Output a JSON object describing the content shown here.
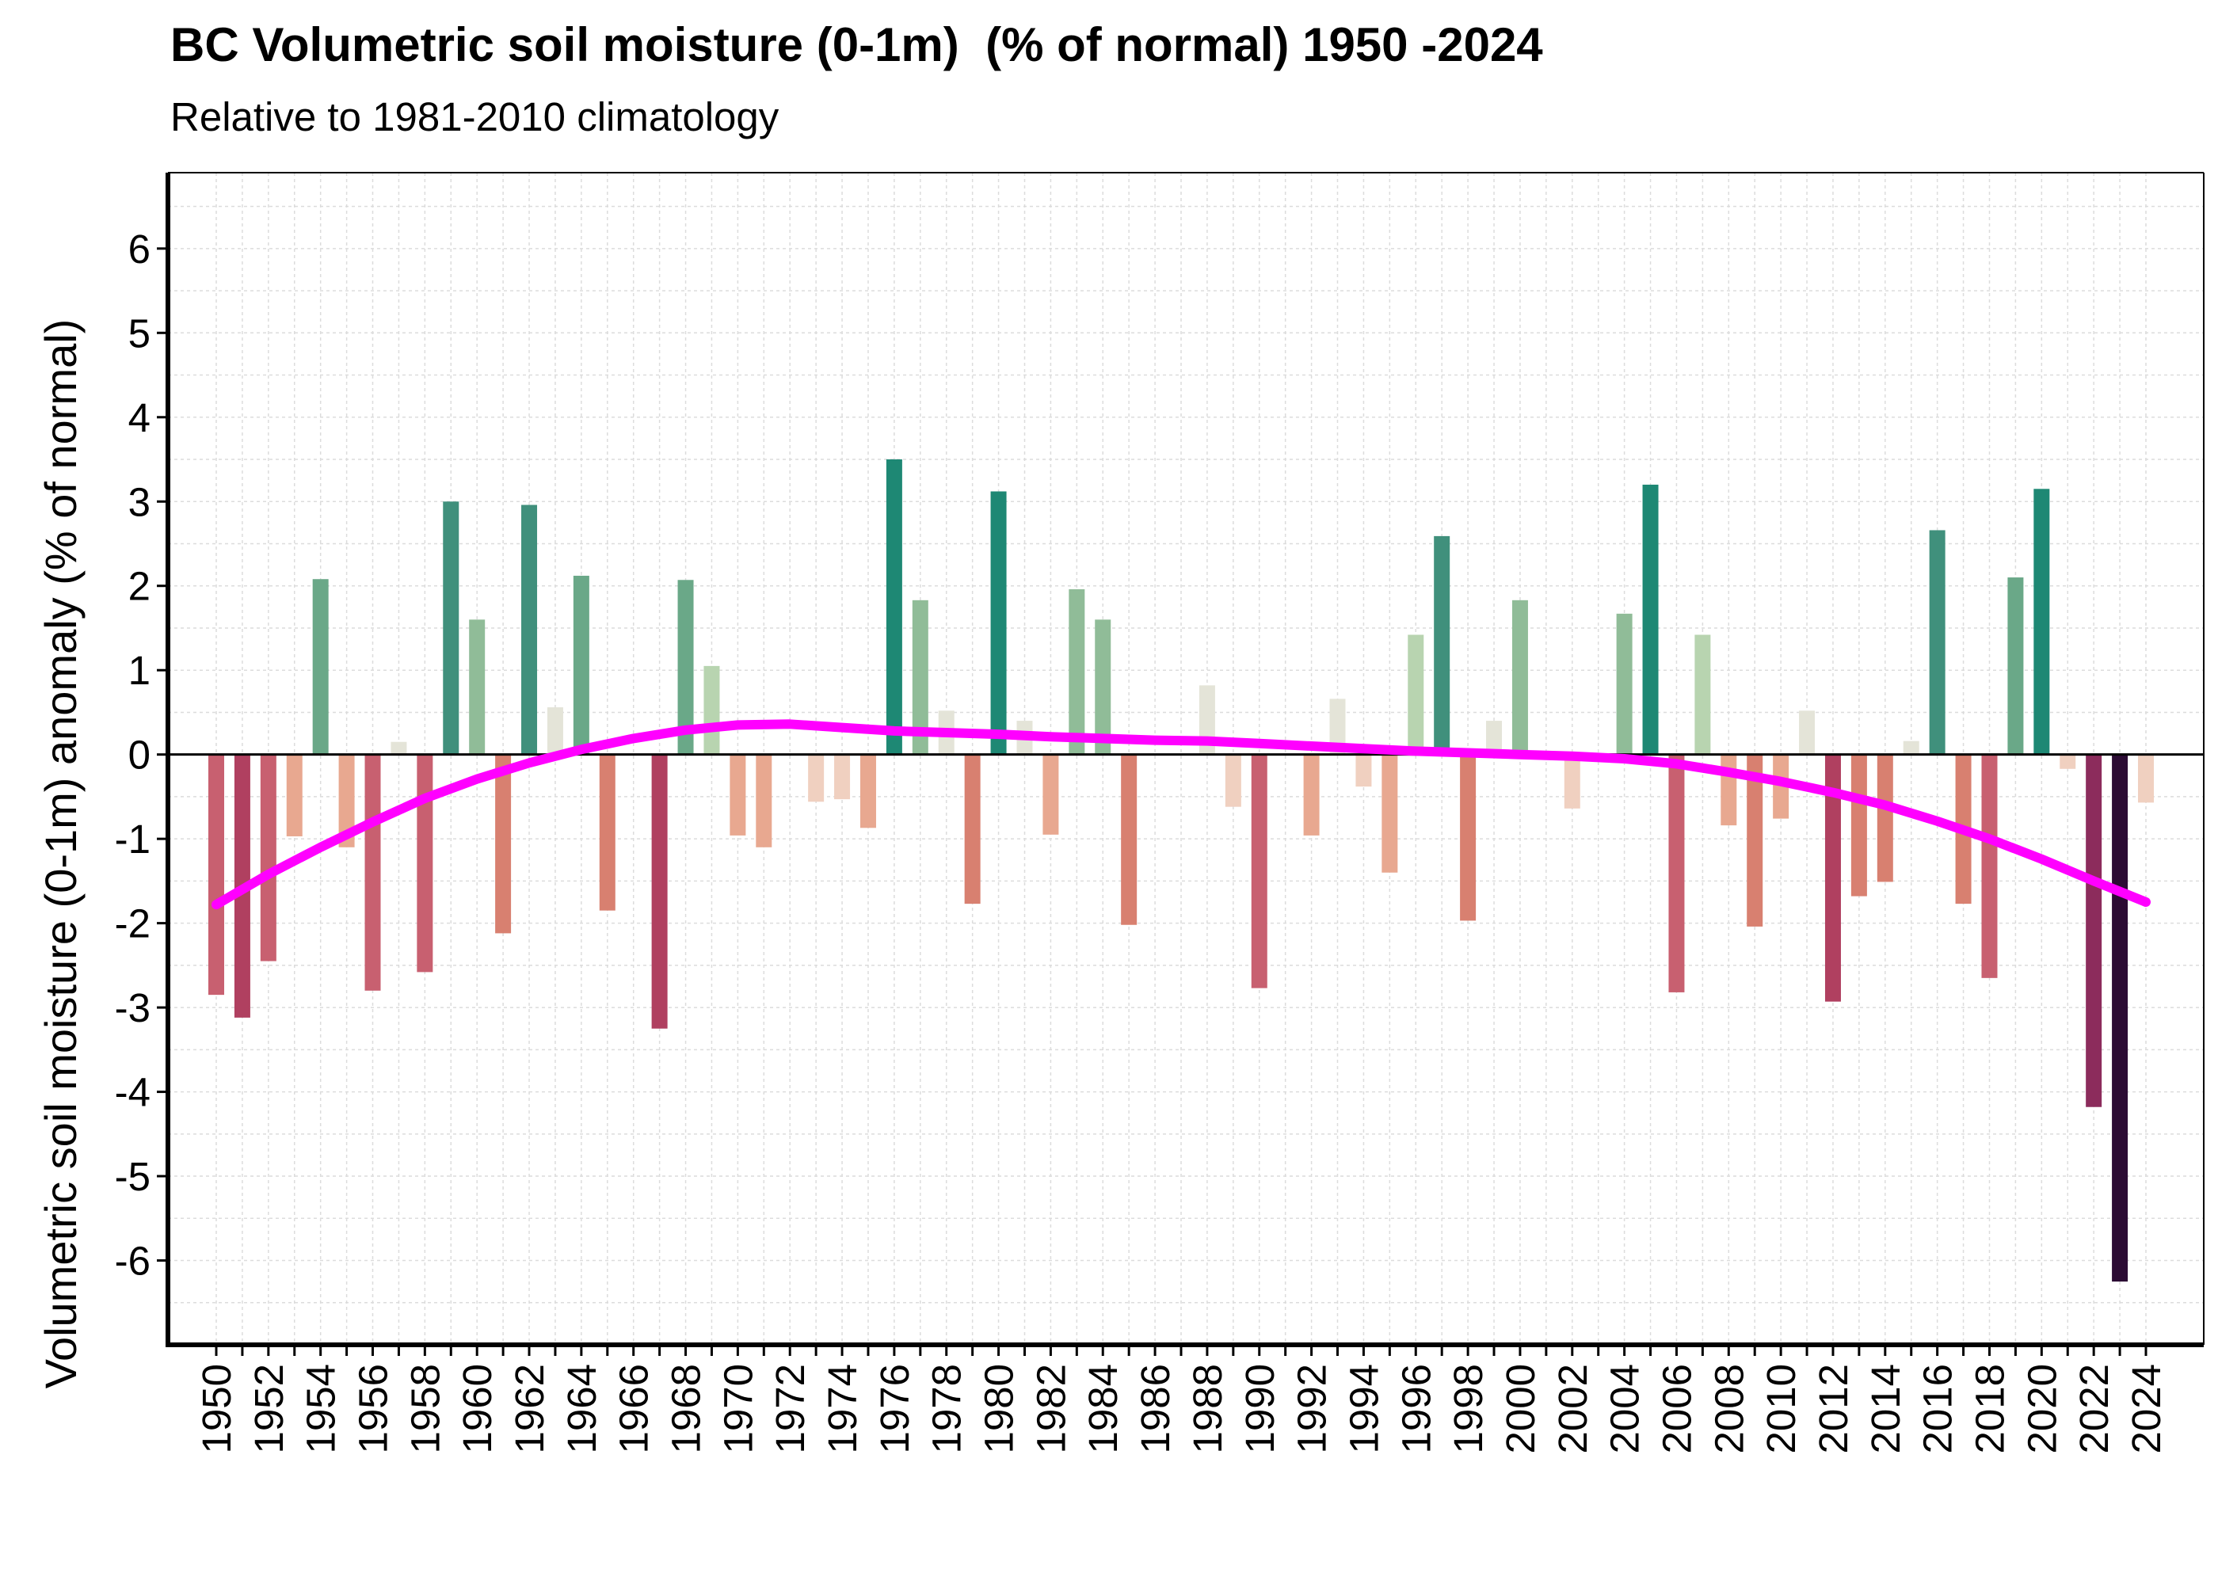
{
  "chart_data": {
    "type": "bar",
    "title": "BC Volumetric soil moisture (0-1m)  (% of normal) 1950 -2024",
    "subtitle": "Relative to 1981-2010 climatology",
    "ylabel": "Volumetric soil moisture (0-1m) anomaly (% of normal)",
    "xlabel": "",
    "ylim": [
      -7.0,
      6.9
    ],
    "y_ticks": [
      -6,
      -5,
      -4,
      -3,
      -2,
      -1,
      0,
      1,
      2,
      3,
      4,
      5,
      6
    ],
    "x_tick_labels": [
      "1950",
      "1952",
      "1954",
      "1956",
      "1958",
      "1960",
      "1962",
      "1964",
      "1966",
      "1968",
      "1970",
      "1972",
      "1974",
      "1976",
      "1978",
      "1980",
      "1982",
      "1984",
      "1986",
      "1988",
      "1990",
      "1992",
      "1994",
      "1996",
      "1998",
      "2000",
      "2002",
      "2004",
      "2006",
      "2008",
      "2010",
      "2012",
      "2014",
      "2016",
      "2018",
      "2020",
      "2022",
      "2024"
    ],
    "grid": true,
    "x": [
      1950,
      1951,
      1952,
      1953,
      1954,
      1955,
      1956,
      1957,
      1958,
      1959,
      1960,
      1961,
      1962,
      1963,
      1964,
      1965,
      1966,
      1967,
      1968,
      1969,
      1970,
      1971,
      1972,
      1973,
      1974,
      1975,
      1976,
      1977,
      1978,
      1979,
      1980,
      1981,
      1982,
      1983,
      1984,
      1985,
      1986,
      1987,
      1988,
      1989,
      1990,
      1991,
      1992,
      1993,
      1994,
      1995,
      1996,
      1997,
      1998,
      1999,
      2000,
      2001,
      2002,
      2003,
      2004,
      2005,
      2006,
      2007,
      2008,
      2009,
      2010,
      2011,
      2012,
      2013,
      2014,
      2015,
      2016,
      2017,
      2018,
      2019,
      2020,
      2021,
      2022,
      2023,
      2024
    ],
    "values": [
      -2.85,
      -3.12,
      -2.45,
      -0.97,
      2.08,
      -1.1,
      -2.8,
      0.15,
      -2.58,
      3.0,
      1.6,
      -2.12,
      2.96,
      0.56,
      2.12,
      -1.85,
      0.0,
      -3.25,
      2.07,
      1.05,
      -0.96,
      -1.1,
      0.0,
      -0.56,
      -0.53,
      -0.87,
      3.5,
      1.83,
      0.52,
      -1.77,
      3.12,
      0.4,
      -0.95,
      1.96,
      1.6,
      -2.02,
      0.0,
      0.0,
      0.82,
      -0.62,
      -2.77,
      0.0,
      -0.96,
      0.66,
      -0.38,
      -1.4,
      1.42,
      2.59,
      -1.97,
      0.4,
      1.83,
      0.0,
      -0.64,
      0.0,
      1.67,
      3.2,
      -2.82,
      1.42,
      -0.84,
      -2.04,
      -0.76,
      0.52,
      -2.93,
      -1.68,
      -1.51,
      0.16,
      2.66,
      -1.77,
      -2.65,
      2.1,
      3.15,
      -0.17,
      -4.18,
      -6.25,
      -0.57
    ],
    "trend": [
      [
        1950,
        -1.78
      ],
      [
        1952,
        -1.42
      ],
      [
        1954,
        -1.1
      ],
      [
        1956,
        -0.8
      ],
      [
        1958,
        -0.52
      ],
      [
        1960,
        -0.29
      ],
      [
        1962,
        -0.1
      ],
      [
        1964,
        0.06
      ],
      [
        1966,
        0.19
      ],
      [
        1968,
        0.29
      ],
      [
        1970,
        0.35
      ],
      [
        1972,
        0.36
      ],
      [
        1974,
        0.32
      ],
      [
        1976,
        0.28
      ],
      [
        1978,
        0.26
      ],
      [
        1980,
        0.24
      ],
      [
        1982,
        0.21
      ],
      [
        1984,
        0.19
      ],
      [
        1986,
        0.17
      ],
      [
        1988,
        0.16
      ],
      [
        1990,
        0.13
      ],
      [
        1992,
        0.1
      ],
      [
        1994,
        0.07
      ],
      [
        1996,
        0.04
      ],
      [
        1998,
        0.02
      ],
      [
        2000,
        0.0
      ],
      [
        2002,
        -0.02
      ],
      [
        2004,
        -0.05
      ],
      [
        2006,
        -0.11
      ],
      [
        2008,
        -0.21
      ],
      [
        2010,
        -0.32
      ],
      [
        2012,
        -0.45
      ],
      [
        2014,
        -0.6
      ],
      [
        2016,
        -0.79
      ],
      [
        2018,
        -1.0
      ],
      [
        2020,
        -1.24
      ],
      [
        2022,
        -1.5
      ],
      [
        2024,
        -1.75
      ]
    ],
    "colors": {
      "trend": "#ff00ff",
      "bar_scale_negative": [
        "#f0d0c0",
        "#e8a890",
        "#d88070",
        "#c86070",
        "#b04060",
        "#8c2c5c",
        "#2c0c34"
      ],
      "bar_scale_positive": [
        "#e4e4d8",
        "#b8d4b0",
        "#90bc98",
        "#6aa888",
        "#40907c",
        "#1e8874"
      ],
      "axis": "#000000",
      "grid": "#dcdcdc"
    }
  }
}
